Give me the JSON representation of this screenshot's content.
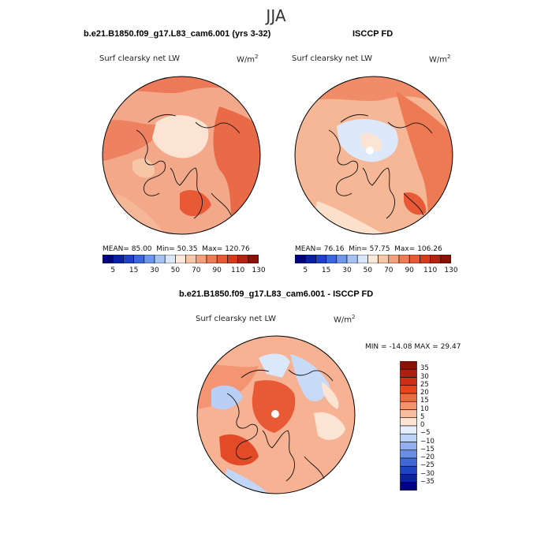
{
  "figure": {
    "season": "JJA",
    "variable_label": "Surf clearsky net LW",
    "units_base": "W/m",
    "units_exp": "2"
  },
  "panels": [
    {
      "title": "b.e21.B1850.f09_g17.L83_cam6.001 (yrs 3-32)",
      "stats": {
        "mean": "85.00",
        "min": "50.35",
        "max": "120.76"
      },
      "mean_label": "MEAN=",
      "min_label": "Min=",
      "max_label": "Max="
    },
    {
      "title": "ISCCP FD",
      "stats": {
        "mean": "76.16",
        "min": "57.75",
        "max": "106.26"
      },
      "mean_label": "MEAN=",
      "min_label": "Min=",
      "max_label": "Max="
    }
  ],
  "diff": {
    "title": "b.e21.B1850.f09_g17.L83_cam6.001 - ISCCP FD",
    "min_label": "MIN =",
    "min": "-14.08",
    "max_label": "MAX =",
    "max": "29.47"
  },
  "colorbar_top": {
    "tick_labels": [
      "5",
      "15",
      "30",
      "50",
      "70",
      "90",
      "110",
      "130"
    ],
    "colors": [
      "#000080",
      "#0a1fa8",
      "#2040cc",
      "#3a66e0",
      "#6e96ec",
      "#a6c2f4",
      "#d8e6fa",
      "#fbe8d8",
      "#f7c6a6",
      "#f3a07c",
      "#ef7a56",
      "#e85a36",
      "#d63a1c",
      "#b52212",
      "#8a1008"
    ]
  },
  "colorbar_diff": {
    "tick_labels": [
      "35",
      "30",
      "25",
      "20",
      "15",
      "10",
      "5",
      "0",
      "−5",
      "−10",
      "−15",
      "−20",
      "−25",
      "−30",
      "−35"
    ],
    "colors": [
      "#8a1008",
      "#b01e10",
      "#cf2e16",
      "#e5461c",
      "#ef6a3e",
      "#f5926a",
      "#f9bc9c",
      "#fde3d2",
      "#e4eefc",
      "#bcd2f6",
      "#93b0ee",
      "#6a8ee4",
      "#4068d6",
      "#1f44c2",
      "#0a22a2",
      "#000080"
    ]
  }
}
